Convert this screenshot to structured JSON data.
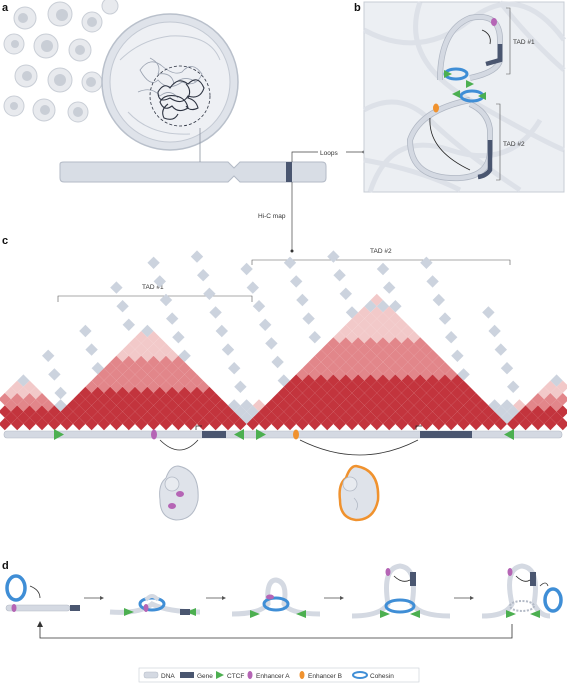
{
  "panels": {
    "a": "a",
    "b": "b",
    "c": "c",
    "d": "d"
  },
  "panel_b": {
    "tad1": "TAD #1",
    "tad2": "TAD #2"
  },
  "connectors": {
    "loops": "Loops",
    "hic_map": "Hi-C map"
  },
  "panel_c": {
    "tad1": "TAD #1",
    "tad2": "TAD #2"
  },
  "legend": {
    "dna": "DNA",
    "gene": "Gene",
    "ctcf": "CTCF",
    "enhancer_a": "Enhancer A",
    "enhancer_b": "Enhancer B",
    "cohesin": "Cohesin"
  },
  "colors": {
    "dna": "#d4d9e2",
    "gene": "#4a5670",
    "ctcf": "#4caf50",
    "enhancer_a": "#b565b5",
    "enhancer_b": "#f0922e",
    "cohesin": "#3f8ed6",
    "hic_strong": "#c3343d",
    "hic_mid": "#e2868a",
    "hic_light": "#f2c9c9",
    "hic_grey": "#ccd3de"
  }
}
